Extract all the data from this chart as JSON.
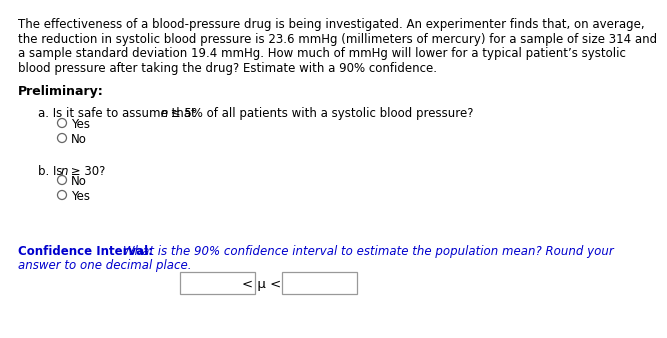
{
  "bg_color": "#ffffff",
  "text_color": "#000000",
  "ci_label_color": "#0000cd",
  "paragraph1_lines": [
    "The effectiveness of a blood-pressure drug is being investigated. An experimenter finds that, on average,",
    "the reduction in systolic blood pressure is 23.6 mmHg (millimeters of mercury) for a sample of size 314 and",
    "a sample standard deviation 19.4 mmHg. How much of mmHg will lower for a typical patient’s systolic",
    "blood pressure after taking the drug? Estimate with a 90% confidence."
  ],
  "preliminary_label": "Preliminary:",
  "qa_text": "a. Is it safe to assume that η ≤ 5% of all patients with a systolic blood pressure?",
  "qa_text_plain": "a. Is it safe to assume that ",
  "qa_n": "n",
  "qa_rest": " ≤ 5% of all patients with a systolic blood pressure?",
  "radio_yes_a": "Yes",
  "radio_no_a": "No",
  "qb_label_plain": "b. Is ",
  "qb_n": "n",
  "qb_rest": " ≥ 30?",
  "radio_no_b": "No",
  "radio_yes_b": "Yes",
  "ci_bold": "Confidence Interval:",
  "ci_italic": "What is the 90% confidence interval to estimate the population mean? Round your",
  "ci_italic2": "answer to one decimal place.",
  "mu_symbol": "< μ <",
  "font_size_para": 8.5,
  "font_size_prelim": 9.0,
  "font_size_question": 8.5,
  "font_size_ci": 8.5,
  "font_size_radio": 8.5
}
